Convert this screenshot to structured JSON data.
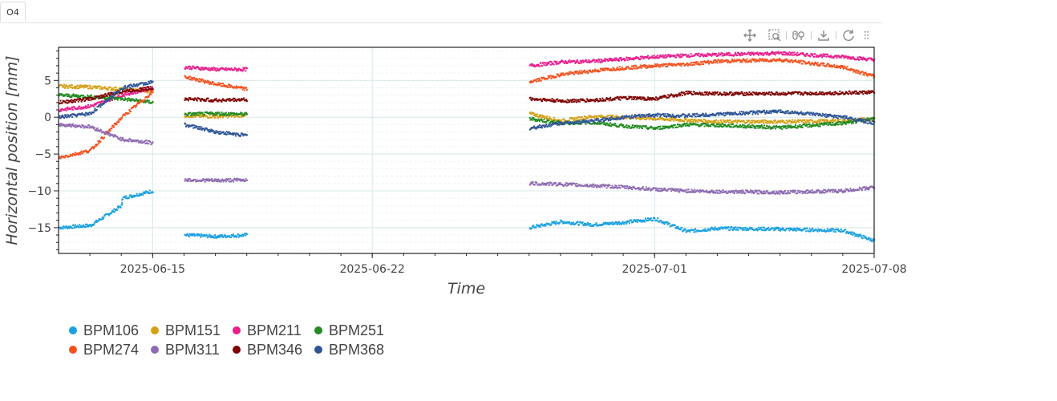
{
  "tab": {
    "label": "O4"
  },
  "toolbar": {
    "tools": [
      {
        "name": "pan-icon"
      },
      {
        "name": "box-zoom-icon"
      },
      {
        "name": "wheel-zoom-icon"
      },
      {
        "name": "save-icon"
      },
      {
        "name": "reset-icon"
      },
      {
        "name": "more-icon"
      }
    ]
  },
  "chart_data": {
    "type": "scatter",
    "xlabel": "Time",
    "ylabel": "Horizontal position [mm]",
    "xlim": [
      "2025-06-12",
      "2025-07-08"
    ],
    "ylim": [
      -18.5,
      9.5
    ],
    "y_ticks": [
      5,
      0,
      -5,
      -10,
      -15
    ],
    "y_tick_labels": [
      "5",
      "0",
      "−5",
      "−10",
      "−15"
    ],
    "x_ticks": [
      "2025-06-15",
      "2025-06-22",
      "2025-07-01",
      "2025-07-08"
    ],
    "grid": true,
    "legend_position": "bottom-left",
    "series": [
      {
        "name": "BPM106",
        "color": "#1ba1e2",
        "segments": [
          {
            "x": [
              "2025-06-12",
              "2025-06-13",
              "2025-06-14",
              "2025-06-14",
              "2025-06-15"
            ],
            "y": [
              -15,
              -14.7,
              -12,
              -11,
              -10
            ]
          },
          {
            "x": [
              "2025-06-16",
              "2025-06-17",
              "2025-06-18"
            ],
            "y": [
              -16,
              -16.2,
              -16
            ]
          },
          {
            "x": [
              "2025-06-27",
              "2025-06-28",
              "2025-06-29",
              "2025-06-30",
              "2025-07-01",
              "2025-07-02",
              "2025-07-03",
              "2025-07-05",
              "2025-07-07",
              "2025-07-08"
            ],
            "y": [
              -15,
              -14.2,
              -14.6,
              -14.3,
              -13.8,
              -15.5,
              -15.1,
              -15.2,
              -15.4,
              -16.8
            ]
          }
        ]
      },
      {
        "name": "BPM151",
        "color": "#d4a017",
        "segments": [
          {
            "x": [
              "2025-06-12",
              "2025-06-13",
              "2025-06-14",
              "2025-06-15"
            ],
            "y": [
              4.2,
              4.1,
              3.8,
              3.5
            ]
          },
          {
            "x": [
              "2025-06-16",
              "2025-06-17",
              "2025-06-18"
            ],
            "y": [
              0.2,
              0.1,
              0.3
            ]
          },
          {
            "x": [
              "2025-06-27",
              "2025-06-28",
              "2025-06-29",
              "2025-06-30",
              "2025-07-01",
              "2025-07-02",
              "2025-07-03",
              "2025-07-05",
              "2025-07-07",
              "2025-07-08"
            ],
            "y": [
              0.5,
              -0.5,
              0.1,
              0,
              -0.2,
              -0.4,
              -0.6,
              -0.6,
              -0.5,
              -0.2
            ]
          }
        ]
      },
      {
        "name": "BPM211",
        "color": "#e91e8c",
        "segments": [
          {
            "x": [
              "2025-06-12",
              "2025-06-13",
              "2025-06-14",
              "2025-06-15"
            ],
            "y": [
              1,
              1.5,
              3,
              4
            ]
          },
          {
            "x": [
              "2025-06-16",
              "2025-06-17",
              "2025-06-18"
            ],
            "y": [
              6.8,
              6.5,
              6.5
            ]
          },
          {
            "x": [
              "2025-06-27",
              "2025-06-28",
              "2025-06-29",
              "2025-06-30",
              "2025-07-01",
              "2025-07-02",
              "2025-07-03",
              "2025-07-05",
              "2025-07-07",
              "2025-07-08"
            ],
            "y": [
              7,
              7.5,
              7.6,
              7.9,
              8.2,
              8.4,
              8.5,
              8.7,
              8.2,
              7.8
            ]
          }
        ]
      },
      {
        "name": "BPM251",
        "color": "#228b22",
        "segments": [
          {
            "x": [
              "2025-06-12",
              "2025-06-13",
              "2025-06-14",
              "2025-06-15"
            ],
            "y": [
              3,
              2.8,
              2.5,
              2
            ]
          },
          {
            "x": [
              "2025-06-16",
              "2025-06-17",
              "2025-06-18"
            ],
            "y": [
              0.4,
              0.5,
              0.4
            ]
          },
          {
            "x": [
              "2025-06-27",
              "2025-06-28",
              "2025-06-29",
              "2025-06-30",
              "2025-07-01",
              "2025-07-02",
              "2025-07-03",
              "2025-07-05",
              "2025-07-07",
              "2025-07-08"
            ],
            "y": [
              -0.2,
              -0.8,
              -0.7,
              -1.2,
              -1.5,
              -1.0,
              -1.1,
              -1.4,
              -0.8,
              -0.2
            ]
          }
        ]
      },
      {
        "name": "BPM274",
        "color": "#f4511e",
        "segments": [
          {
            "x": [
              "2025-06-12",
              "2025-06-13",
              "2025-06-14",
              "2025-06-15"
            ],
            "y": [
              -5.5,
              -4.5,
              0,
              3.5
            ]
          },
          {
            "x": [
              "2025-06-16",
              "2025-06-17",
              "2025-06-18"
            ],
            "y": [
              5.5,
              4.5,
              3.8
            ]
          },
          {
            "x": [
              "2025-06-27",
              "2025-06-28",
              "2025-06-29",
              "2025-06-30",
              "2025-07-01",
              "2025-07-02",
              "2025-07-03",
              "2025-07-05",
              "2025-07-07",
              "2025-07-08"
            ],
            "y": [
              4.8,
              5.8,
              6.3,
              6.7,
              7.0,
              7.2,
              7.6,
              7.8,
              6.8,
              5.5
            ]
          }
        ]
      },
      {
        "name": "BPM311",
        "color": "#8e6bb1",
        "segments": [
          {
            "x": [
              "2025-06-12",
              "2025-06-13",
              "2025-06-14",
              "2025-06-15"
            ],
            "y": [
              -1,
              -1.3,
              -3,
              -3.5
            ]
          },
          {
            "x": [
              "2025-06-16",
              "2025-06-17",
              "2025-06-18"
            ],
            "y": [
              -8.5,
              -8.6,
              -8.5
            ]
          },
          {
            "x": [
              "2025-06-27",
              "2025-06-28",
              "2025-06-29",
              "2025-06-30",
              "2025-07-01",
              "2025-07-02",
              "2025-07-03",
              "2025-07-05",
              "2025-07-07",
              "2025-07-08"
            ],
            "y": [
              -9,
              -9.1,
              -9.3,
              -9.5,
              -9.8,
              -10,
              -10.1,
              -10.2,
              -10,
              -9.5
            ]
          }
        ]
      },
      {
        "name": "BPM346",
        "color": "#800000",
        "segments": [
          {
            "x": [
              "2025-06-12",
              "2025-06-13",
              "2025-06-14",
              "2025-06-15"
            ],
            "y": [
              2,
              2.5,
              3.5,
              4
            ]
          },
          {
            "x": [
              "2025-06-16",
              "2025-06-17",
              "2025-06-18"
            ],
            "y": [
              2.5,
              2.3,
              2.4
            ]
          },
          {
            "x": [
              "2025-06-27",
              "2025-06-28",
              "2025-06-29",
              "2025-06-30",
              "2025-07-01",
              "2025-07-02",
              "2025-07-03",
              "2025-07-05",
              "2025-07-07",
              "2025-07-08"
            ],
            "y": [
              2.5,
              2.2,
              2.3,
              2.6,
              2.5,
              3.3,
              3.2,
              3.2,
              3.3,
              3.4
            ]
          }
        ]
      },
      {
        "name": "BPM368",
        "color": "#2f5597",
        "segments": [
          {
            "x": [
              "2025-06-12",
              "2025-06-13",
              "2025-06-14",
              "2025-06-15"
            ],
            "y": [
              0,
              0.5,
              4,
              4.8
            ]
          },
          {
            "x": [
              "2025-06-16",
              "2025-06-17",
              "2025-06-18"
            ],
            "y": [
              -1,
              -2,
              -2.5
            ]
          },
          {
            "x": [
              "2025-06-27",
              "2025-06-28",
              "2025-06-29",
              "2025-06-30",
              "2025-07-01",
              "2025-07-02",
              "2025-07-03",
              "2025-07-05",
              "2025-07-07",
              "2025-07-08"
            ],
            "y": [
              -1.5,
              -0.8,
              -0.5,
              0,
              0.3,
              0.2,
              0.4,
              0.8,
              0,
              -0.8
            ]
          }
        ]
      }
    ]
  }
}
